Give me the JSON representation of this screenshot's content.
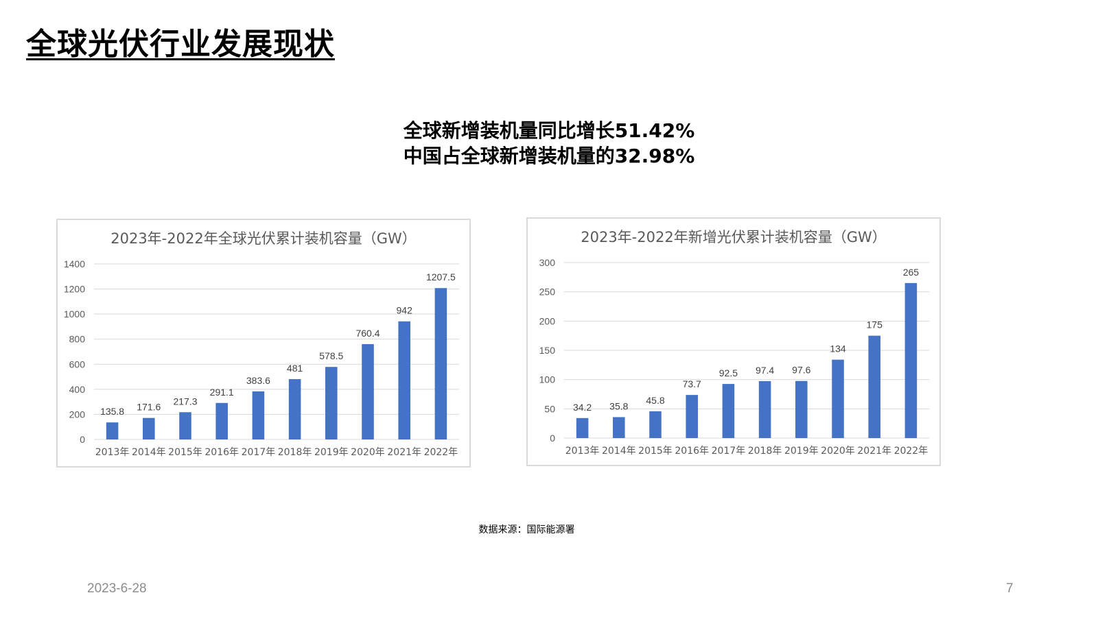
{
  "slide": {
    "title": "全球光伏行业发展现状",
    "headline_line1": "全球新增装机量同比增长51.42%",
    "headline_line2": "中国占全球新增装机量的32.98%",
    "source": "数据来源：国际能源署",
    "date": "2023-6-28",
    "page_number": "7"
  },
  "colors": {
    "bar": "#4472C4",
    "grid": "#d9d9d9",
    "text": "#595959"
  },
  "chart_data": [
    {
      "type": "bar",
      "title": "2023年-2022年全球光伏累计装机容量（GW）",
      "categories": [
        "2013年",
        "2014年",
        "2015年",
        "2016年",
        "2017年",
        "2018年",
        "2019年",
        "2020年",
        "2021年",
        "2022年"
      ],
      "values": [
        135.8,
        171.6,
        217.3,
        291.1,
        383.6,
        481,
        578.5,
        760.4,
        942,
        1207.5
      ],
      "ylim": [
        0,
        1400
      ],
      "yticks": [
        0,
        200,
        400,
        600,
        800,
        1000,
        1200,
        1400
      ],
      "xlabel": "",
      "ylabel": "",
      "grid": true,
      "legend": "none"
    },
    {
      "type": "bar",
      "title": "2023年-2022年新增光伏累计装机容量（GW）",
      "categories": [
        "2013年",
        "2014年",
        "2015年",
        "2016年",
        "2017年",
        "2018年",
        "2019年",
        "2020年",
        "2021年",
        "2022年"
      ],
      "values": [
        34.2,
        35.8,
        45.8,
        73.7,
        92.5,
        97.4,
        97.6,
        134,
        175,
        265
      ],
      "ylim": [
        0,
        300
      ],
      "yticks": [
        0,
        50,
        100,
        150,
        200,
        250,
        300
      ],
      "xlabel": "",
      "ylabel": "",
      "grid": true,
      "legend": "none"
    }
  ]
}
